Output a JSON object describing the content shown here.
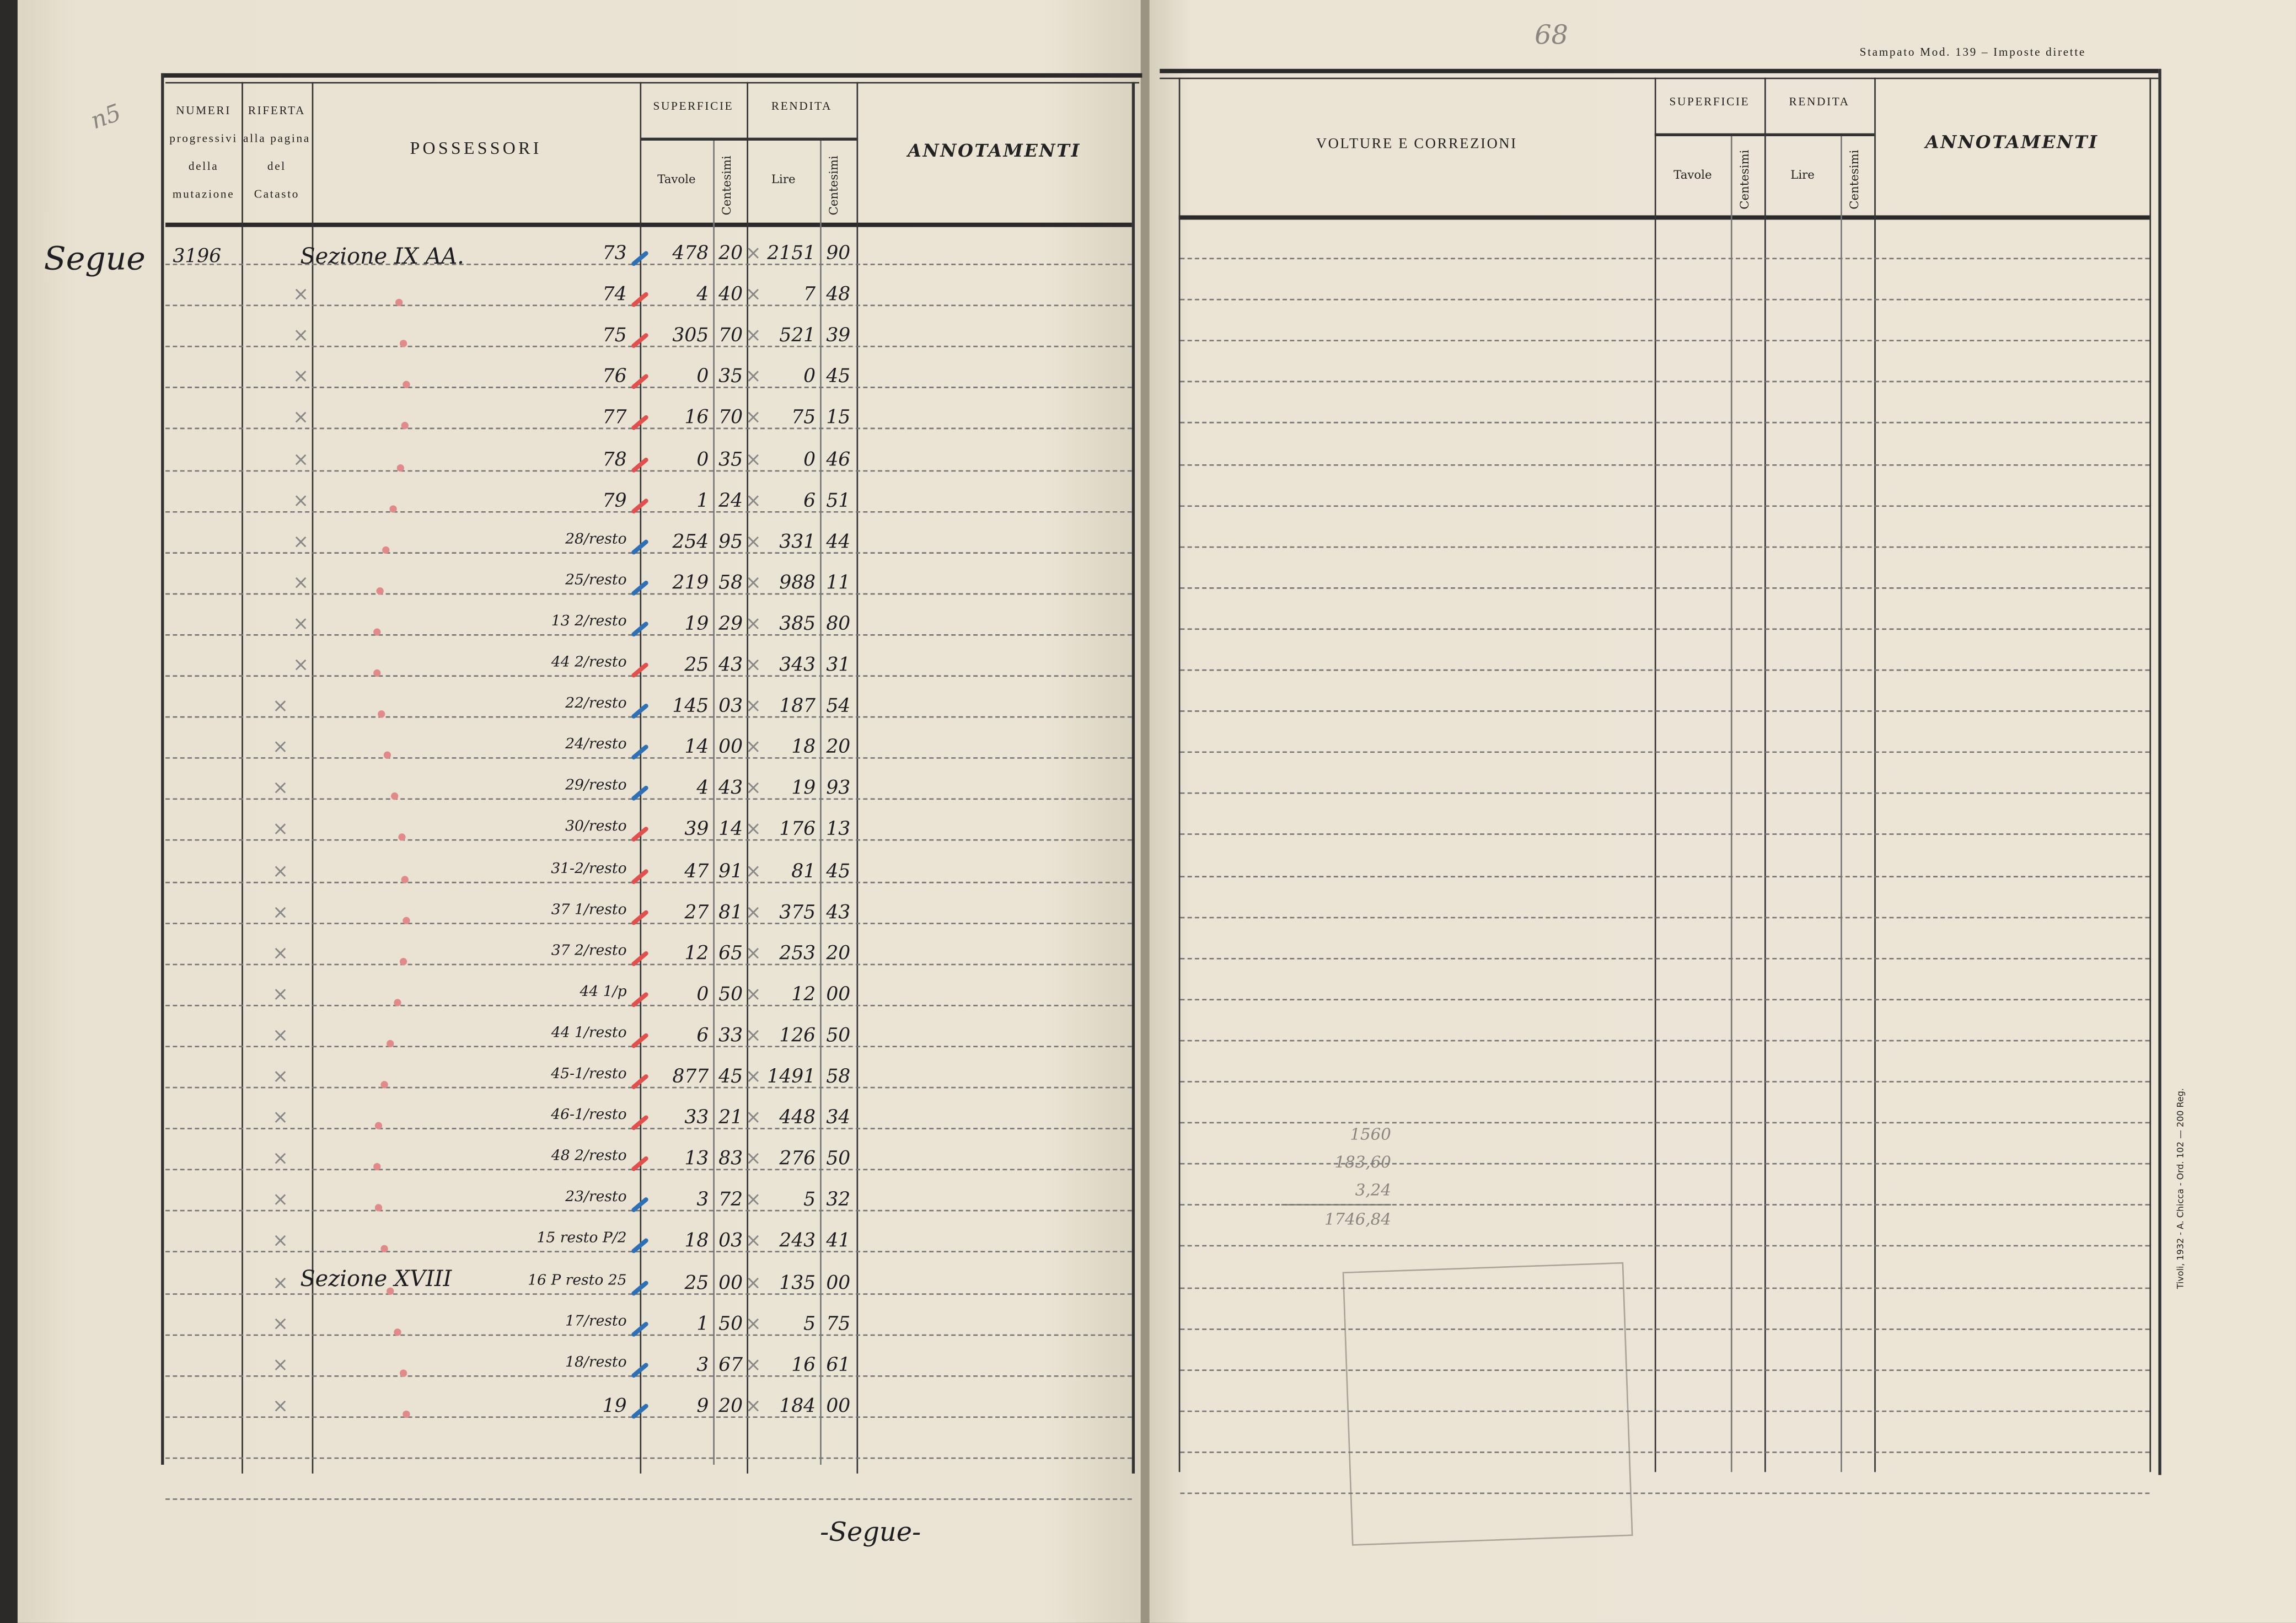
{
  "page_number": "68",
  "margin_note": "n5",
  "left_margin_note": "Segue",
  "form_title": "Stampato Mod. 139 – Imposte dirette",
  "printer_imprint": "Tivoli, 1932 - A. Chicca - Ord. 102 — 200 Reg.",
  "left_table": {
    "headers": {
      "numeri": [
        "NUMERI",
        "progressivi",
        "della",
        "mutazione"
      ],
      "riferta": [
        "RIFERTA",
        "alla pagina",
        "del",
        "Catasto"
      ],
      "possessori": "POSSESSORI",
      "superficie": "SUPERFICIE",
      "rendita": "RENDITA",
      "tavole": "Tavole",
      "centesimi": "Centesimi",
      "lire": "Lire",
      "annotamenti": "ANNOTAMENTI"
    },
    "mutation_number": "3196",
    "sections": [
      "Sezione IX AA.",
      "Sezione XVIII"
    ],
    "rows": [
      {
        "parcel": "73",
        "tavole": "478",
        "tav_cent": "20",
        "lire": "2151",
        "lire_cent": "90",
        "tick": "blue"
      },
      {
        "parcel": "74",
        "tavole": "4",
        "tav_cent": "40",
        "lire": "7",
        "lire_cent": "48",
        "tick": "red"
      },
      {
        "parcel": "75",
        "tavole": "305",
        "tav_cent": "70",
        "lire": "521",
        "lire_cent": "39",
        "tick": "red"
      },
      {
        "parcel": "76",
        "tavole": "0",
        "tav_cent": "35",
        "lire": "0",
        "lire_cent": "45",
        "tick": "red"
      },
      {
        "parcel": "77",
        "tavole": "16",
        "tav_cent": "70",
        "lire": "75",
        "lire_cent": "15",
        "tick": "red"
      },
      {
        "parcel": "78",
        "tavole": "0",
        "tav_cent": "35",
        "lire": "0",
        "lire_cent": "46",
        "tick": "red"
      },
      {
        "parcel": "79",
        "tavole": "1",
        "tav_cent": "24",
        "lire": "6",
        "lire_cent": "51",
        "tick": "red"
      },
      {
        "parcel": "28/resto",
        "tavole": "254",
        "tav_cent": "95",
        "lire": "331",
        "lire_cent": "44",
        "tick": "blue"
      },
      {
        "parcel": "25/resto",
        "tavole": "219",
        "tav_cent": "58",
        "lire": "988",
        "lire_cent": "11",
        "tick": "blue"
      },
      {
        "parcel": "13 2/resto",
        "tavole": "19",
        "tav_cent": "29",
        "lire": "385",
        "lire_cent": "80",
        "tick": "blue"
      },
      {
        "parcel": "44 2/resto",
        "tavole": "25",
        "tav_cent": "43",
        "lire": "343",
        "lire_cent": "31",
        "tick": "red"
      },
      {
        "parcel": "22/resto",
        "tavole": "145",
        "tav_cent": "03",
        "lire": "187",
        "lire_cent": "54",
        "tick": "blue"
      },
      {
        "parcel": "24/resto",
        "tavole": "14",
        "tav_cent": "00",
        "lire": "18",
        "lire_cent": "20",
        "tick": "blue"
      },
      {
        "parcel": "29/resto",
        "tavole": "4",
        "tav_cent": "43",
        "lire": "19",
        "lire_cent": "93",
        "tick": "blue"
      },
      {
        "parcel": "30/resto",
        "tavole": "39",
        "tav_cent": "14",
        "lire": "176",
        "lire_cent": "13",
        "tick": "red"
      },
      {
        "parcel": "31-2/resto",
        "tavole": "47",
        "tav_cent": "91",
        "lire": "81",
        "lire_cent": "45",
        "tick": "red"
      },
      {
        "parcel": "37 1/resto",
        "tavole": "27",
        "tav_cent": "81",
        "lire": "375",
        "lire_cent": "43",
        "tick": "red"
      },
      {
        "parcel": "37 2/resto",
        "tavole": "12",
        "tav_cent": "65",
        "lire": "253",
        "lire_cent": "20",
        "tick": "red"
      },
      {
        "parcel": "44 1/p",
        "tavole": "0",
        "tav_cent": "50",
        "lire": "12",
        "lire_cent": "00",
        "tick": "red"
      },
      {
        "parcel": "44 1/resto",
        "tavole": "6",
        "tav_cent": "33",
        "lire": "126",
        "lire_cent": "50",
        "tick": "red"
      },
      {
        "parcel": "45-1/resto",
        "tavole": "877",
        "tav_cent": "45",
        "lire": "1491",
        "lire_cent": "58",
        "tick": "red"
      },
      {
        "parcel": "46-1/resto",
        "tavole": "33",
        "tav_cent": "21",
        "lire": "448",
        "lire_cent": "34",
        "tick": "red"
      },
      {
        "parcel": "48 2/resto",
        "tavole": "13",
        "tav_cent": "83",
        "lire": "276",
        "lire_cent": "50",
        "tick": "red"
      },
      {
        "parcel": "23/resto",
        "tavole": "3",
        "tav_cent": "72",
        "lire": "5",
        "lire_cent": "32",
        "tick": "blue"
      },
      {
        "parcel": "15 resto P/2",
        "tavole": "18",
        "tav_cent": "03",
        "lire": "243",
        "lire_cent": "41",
        "tick": "blue"
      },
      {
        "parcel": "16 P resto 25",
        "tavole": "25",
        "tav_cent": "00",
        "lire": "135",
        "lire_cent": "00",
        "tick": "blue"
      },
      {
        "parcel": "17/resto",
        "tavole": "1",
        "tav_cent": "50",
        "lire": "5",
        "lire_cent": "75",
        "tick": "blue"
      },
      {
        "parcel": "18/resto",
        "tavole": "3",
        "tav_cent": "67",
        "lire": "16",
        "lire_cent": "61",
        "tick": "blue"
      },
      {
        "parcel": "19",
        "tavole": "9",
        "tav_cent": "20",
        "lire": "184",
        "lire_cent": "00",
        "tick": "blue"
      }
    ],
    "footer_note": "-Segue-"
  },
  "right_table": {
    "headers": {
      "volture": "VOLTURE E CORREZIONI",
      "superficie": "SUPERFICIE",
      "rendita": "RENDITA",
      "tavole": "Tavole",
      "centesimi": "Centesimi",
      "lire": "Lire",
      "annotamenti": "ANNOTAMENTI"
    },
    "pencil_sum": [
      "1560",
      "183,60",
      "3,24",
      "1746,84"
    ]
  },
  "colors": {
    "paper": "#e9e2d2",
    "ink": "#1d1d22",
    "tick_blue": "#2f6fb4",
    "tick_red": "#e0504e",
    "pencil": "#8a8580"
  }
}
